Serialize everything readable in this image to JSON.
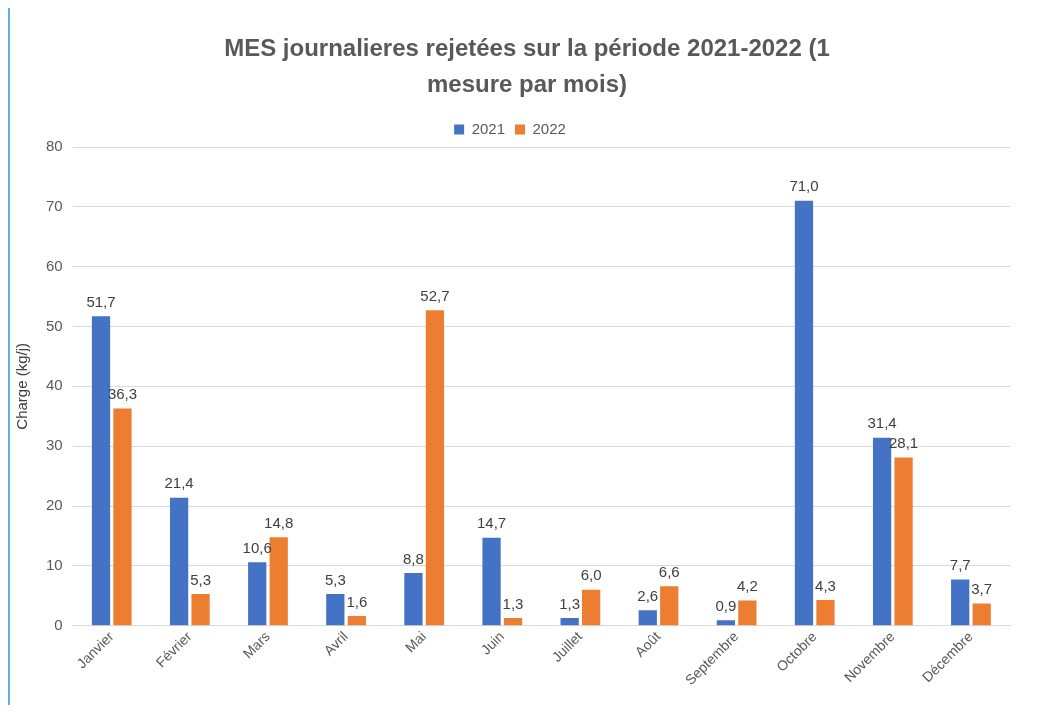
{
  "chart_data": {
    "type": "bar",
    "title": "MES journalieres rejetées sur la période 2021-2022 (1 mesure par mois)",
    "ylabel": "Charge (kg/j)",
    "categories": [
      "Janvier",
      "Février",
      "Mars",
      "Avril",
      "Mai",
      "Juin",
      "Juillet",
      "Août",
      "Septembre",
      "Octobre",
      "Novembre",
      "Décembre"
    ],
    "series": [
      {
        "name": "2021",
        "color": "#4472c4",
        "values": [
          51.7,
          21.4,
          10.6,
          5.3,
          8.8,
          14.7,
          1.3,
          2.6,
          0.9,
          71.0,
          31.4,
          7.7
        ],
        "value_labels": [
          "51,7",
          "21,4",
          "10,6",
          "5,3",
          "8,8",
          "14,7",
          "1,3",
          "2,6",
          "0,9",
          "71,0",
          "31,4",
          "7,7"
        ]
      },
      {
        "name": "2022",
        "color": "#ed7d31",
        "values": [
          36.3,
          5.3,
          14.8,
          1.6,
          52.7,
          1.3,
          6.0,
          6.6,
          4.2,
          4.3,
          28.1,
          3.7
        ],
        "value_labels": [
          "36,3",
          "5,3",
          "14,8",
          "1,6",
          "52,7",
          "1,3",
          "6,0",
          "6,6",
          "4,2",
          "4,3",
          "28,1",
          "3,7"
        ]
      }
    ],
    "ylim": [
      0,
      80
    ],
    "yticks": [
      0,
      10,
      20,
      30,
      40,
      50,
      60,
      70,
      80
    ],
    "grid": "y",
    "legend": "top"
  }
}
